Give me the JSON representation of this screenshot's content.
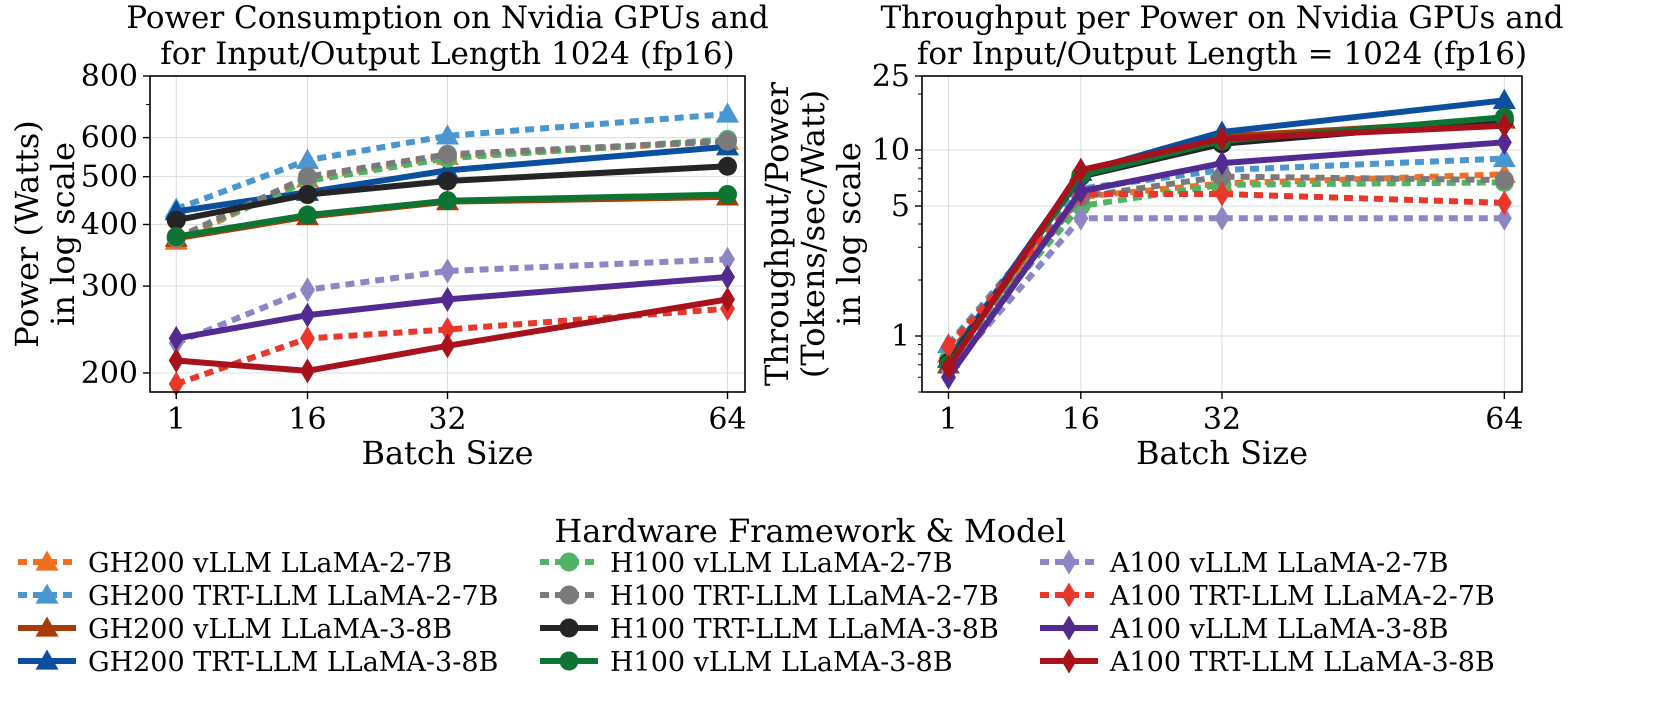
{
  "chart_data": [
    {
      "type": "line",
      "title": "Power Consumption on Nvidia GPUs and\nfor Input/Output Length 1024 (fp16)",
      "xlabel": "Batch Size",
      "ylabel": "Power (Watts)\nin log scale",
      "yscale": "log",
      "ylim": [
        183,
        800
      ],
      "x": [
        1,
        16,
        32,
        64
      ],
      "xticks": [
        "1",
        "16",
        "32",
        "64"
      ],
      "yticks": [
        200,
        300,
        400,
        500,
        600,
        800
      ],
      "ytick_labels": [
        "200",
        "300",
        "400",
        "500",
        "600",
        "800"
      ],
      "grid": true,
      "series": [
        {
          "name": "GH200 vLLM LLaMA-2-7B",
          "values": [
            370,
            495,
            550,
            590
          ]
        },
        {
          "name": "GH200 TRT-LLM LLaMA-2-7B",
          "values": [
            430,
            540,
            605,
            670
          ]
        },
        {
          "name": "GH200 vLLM LLaMA-3-8B",
          "values": [
            375,
            415,
            445,
            455
          ]
        },
        {
          "name": "GH200 TRT-LLM LLaMA-3-8B",
          "values": [
            425,
            465,
            515,
            575
          ]
        },
        {
          "name": "H100 vLLM LLaMA-2-7B",
          "values": [
            375,
            490,
            545,
            595
          ]
        },
        {
          "name": "H100 TRT-LLM LLaMA-2-7B",
          "values": [
            375,
            500,
            555,
            590
          ]
        },
        {
          "name": "H100 TRT-LLM LLaMA-3-8B",
          "values": [
            408,
            460,
            490,
            525
          ]
        },
        {
          "name": "H100 vLLM LLaMA-3-8B",
          "values": [
            378,
            418,
            447,
            460
          ]
        },
        {
          "name": "A100 vLLM LLaMA-2-7B",
          "values": [
            230,
            295,
            322,
            340
          ]
        },
        {
          "name": "A100 TRT-LLM LLaMA-2-7B",
          "values": [
            190,
            235,
            245,
            270
          ]
        },
        {
          "name": "A100 vLLM LLaMA-3-8B",
          "values": [
            235,
            262,
            282,
            313
          ]
        },
        {
          "name": "A100 TRT-LLM LLaMA-3-8B",
          "values": [
            212,
            202,
            227,
            282
          ]
        }
      ]
    },
    {
      "type": "line",
      "title": "Throughput per Power on Nvidia GPUs and\nfor Input/Output Length = 1024 (fp16)",
      "xlabel": "Batch Size",
      "ylabel": "Throughput/Power\n(Tokens/sec/Watt)\nin log scale",
      "yscale": "log",
      "ylim": [
        0.5,
        25
      ],
      "x": [
        1,
        16,
        32,
        64
      ],
      "xticks": [
        "1",
        "16",
        "32",
        "64"
      ],
      "yticks": [
        1,
        5,
        10,
        25
      ],
      "ytick_labels": [
        "1",
        "5",
        "10",
        "25"
      ],
      "grid": true,
      "series": [
        {
          "name": "GH200 vLLM LLaMA-2-7B",
          "values": [
            0.8,
            5.6,
            6.6,
            7.4
          ]
        },
        {
          "name": "GH200 TRT-LLM LLaMA-2-7B",
          "values": [
            0.9,
            6.2,
            7.8,
            9.0
          ]
        },
        {
          "name": "GH200 vLLM LLaMA-3-8B",
          "values": [
            0.7,
            7.6,
            11.8,
            14.5
          ]
        },
        {
          "name": "GH200 TRT-LLM LLaMA-3-8B",
          "values": [
            0.75,
            7.6,
            12.5,
            18.5
          ]
        },
        {
          "name": "H100 vLLM LLaMA-2-7B",
          "values": [
            0.75,
            5.0,
            6.5,
            6.7
          ]
        },
        {
          "name": "H100 TRT-LLM LLaMA-2-7B",
          "values": [
            0.7,
            5.6,
            7.2,
            6.9
          ]
        },
        {
          "name": "H100 TRT-LLM LLaMA-3-8B",
          "values": [
            0.72,
            7.2,
            10.8,
            14.5
          ]
        },
        {
          "name": "H100 vLLM LLaMA-3-8B",
          "values": [
            0.7,
            7.3,
            11.2,
            15.0
          ]
        },
        {
          "name": "A100 vLLM LLaMA-2-7B",
          "values": [
            0.65,
            4.3,
            4.3,
            4.3
          ]
        },
        {
          "name": "A100 TRT-LLM LLaMA-2-7B",
          "values": [
            0.88,
            5.8,
            5.8,
            5.2
          ]
        },
        {
          "name": "A100 vLLM LLaMA-3-8B",
          "values": [
            0.6,
            6.0,
            8.5,
            11.0
          ]
        },
        {
          "name": "A100 TRT-LLM LLaMA-3-8B",
          "values": [
            0.68,
            7.8,
            11.5,
            13.5
          ]
        }
      ]
    }
  ],
  "legend": {
    "title": "Hardware Framework & Model",
    "placement": "bottom"
  },
  "series_styles": [
    {
      "color": "#f07020",
      "dash": "dot",
      "marker": "triangle"
    },
    {
      "color": "#4a96cf",
      "dash": "dot",
      "marker": "triangle"
    },
    {
      "color": "#a83c08",
      "dash": "solid",
      "marker": "triangle"
    },
    {
      "color": "#0b4f9e",
      "dash": "solid",
      "marker": "triangle"
    },
    {
      "color": "#52b366",
      "dash": "dot",
      "marker": "circle"
    },
    {
      "color": "#7a7a7a",
      "dash": "dot",
      "marker": "circle"
    },
    {
      "color": "#252525",
      "dash": "solid",
      "marker": "circle"
    },
    {
      "color": "#0e7433",
      "dash": "solid",
      "marker": "circle"
    },
    {
      "color": "#8c87c4",
      "dash": "dot",
      "marker": "diamond"
    },
    {
      "color": "#e8382c",
      "dash": "dot",
      "marker": "diamond"
    },
    {
      "color": "#532a91",
      "dash": "solid",
      "marker": "diamond"
    },
    {
      "color": "#a8121c",
      "dash": "solid",
      "marker": "diamond"
    }
  ]
}
